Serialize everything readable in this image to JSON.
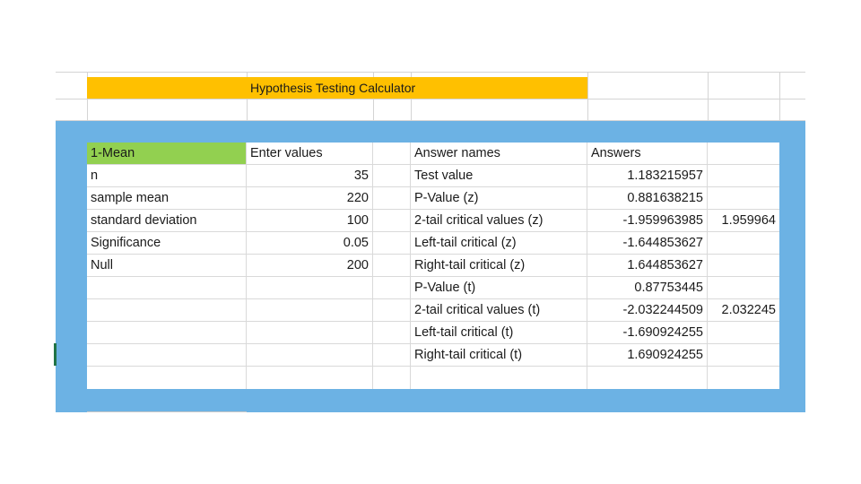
{
  "title": "Hypothesis Testing Calculator",
  "headers": {
    "section": "1-Mean",
    "values": "Enter values",
    "answer_names": "Answer names",
    "answers": "Answers"
  },
  "inputs": [
    {
      "label": "n",
      "value": "35"
    },
    {
      "label": "sample mean",
      "value": "220"
    },
    {
      "label": "standard deviation",
      "value": "100"
    },
    {
      "label": "Significance",
      "value": "0.05"
    },
    {
      "label": "Null",
      "value": "200"
    }
  ],
  "results": [
    {
      "name": "Test value",
      "answer": "1.183215957",
      "extra": ""
    },
    {
      "name": "P-Value (z)",
      "answer": "0.881638215",
      "extra": ""
    },
    {
      "name": "2-tail critical values (z)",
      "answer": "-1.959963985",
      "extra": "1.959964"
    },
    {
      "name": "Left-tail critical (z)",
      "answer": "-1.644853627",
      "extra": ""
    },
    {
      "name": "Right-tail critical (z)",
      "answer": "1.644853627",
      "extra": ""
    },
    {
      "name": "P-Value (t)",
      "answer": "0.87753445",
      "extra": ""
    },
    {
      "name": "2-tail critical values (t)",
      "answer": "-2.032244509",
      "extra": "2.032245"
    },
    {
      "name": "Left-tail critical (t)",
      "answer": "-1.690924255",
      "extra": ""
    },
    {
      "name": "Right-tail critical (t)",
      "answer": "1.690924255",
      "extra": ""
    }
  ],
  "colors": {
    "banner": "#ffc000",
    "header_green": "#92d050",
    "frame_blue": "#6cb2e4"
  }
}
